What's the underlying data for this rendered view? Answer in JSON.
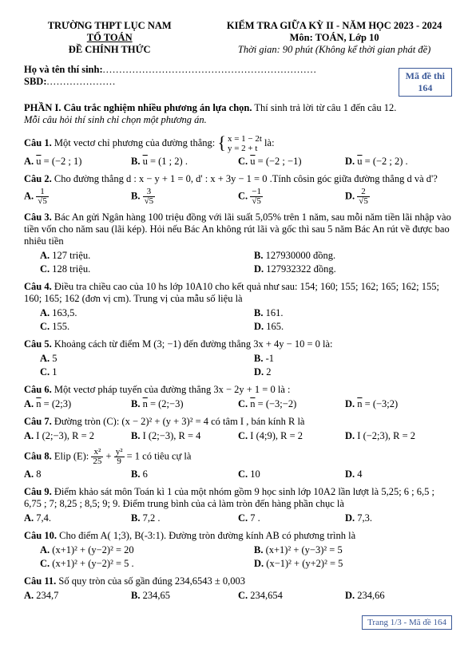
{
  "header": {
    "school": "TRƯỜNG THPT LỤC NAM",
    "dept": "TỔ TOÁN",
    "official": "ĐỀ CHÍNH THỨC",
    "exam_title": "KIỂM TRA GIỮA KỲ II - NĂM HỌC 2023 - 2024",
    "subject": "Môn: TOÁN, Lớp 10",
    "time": "Thời gian: 90 phút (Không kể thời gian phát đề)",
    "exam_code_label": "Mã đề thi",
    "exam_code": "164",
    "name_label": "Họ và tên thí sinh:",
    "sbd_label": "SBD:"
  },
  "section": {
    "title": "PHẦN I. Câu trắc nghiệm nhiều phương án lựa chọn.",
    "title_tail": " Thí sinh trả lời từ câu 1 đến câu 12.",
    "instruction": "Mỗi câu hỏi thí sinh chỉ chọn một phương án."
  },
  "q1": {
    "label": "Câu 1.",
    "text1": " Một vectơ chỉ phương của đường thẳng: ",
    "sys1": "x = 1 − 2t",
    "sys2": "y = 2 + t",
    "text2": " là:",
    "a": "u = (−2 ; 1)",
    "b": "u = (1 ; 2) .",
    "c": "u = (−2 ; −1)",
    "d": "u = (−2 ; 2) ."
  },
  "q2": {
    "label": "Câu 2.",
    "text": " Cho đường thẳng d : x − y + 1 = 0, d' : x + 3y − 1 = 0 .Tính côsin góc giữa đường thẳng d và d'?"
  },
  "q3": {
    "label": "Câu 3.",
    "text": " Bác An gửi Ngân hàng 100 triệu đồng với lãi suất 5,05% trên 1 năm, sau mỗi năm tiền lãi nhập vào tiền vốn cho năm sau (lãi kép). Hỏi nếu Bác An không rút lãi và gốc thì sau 5 năm Bác An rút về được bao nhiêu tiền",
    "a": "127 triệu.",
    "b": "127930000 đồng.",
    "c": "128 triệu.",
    "d": "127932322 đồng."
  },
  "q4": {
    "label": "Câu 4.",
    "text": " Điều tra chiều cao của 10 hs lớp 10A10 cho kết quả như sau: 154; 160; 155; 162; 165; 162; 155; 160; 165; 162 (đơn vị cm). Trung vị của mẫu số liệu là",
    "a": "163,5.",
    "b": "161.",
    "c": "155.",
    "d": "165."
  },
  "q5": {
    "label": "Câu 5.",
    "text": " Khoảng cách từ điểm M (3; −1) đến đường thẳng 3x + 4y − 10 = 0 là:",
    "a": "5",
    "b": "-1",
    "c": "1",
    "d": "2"
  },
  "q6": {
    "label": "Câu 6.",
    "text": " Một vectơ pháp tuyến của đường thẳng 3x − 2y + 1 = 0 là :",
    "a": "n = (2;3)",
    "b": "n = (2;−3)",
    "c": "n = (−3;−2)",
    "d": "n = (−3;2)"
  },
  "q7": {
    "label": "Câu 7.",
    "text": " Đường tròn (C): (x − 2)² + (y + 3)² = 4 có tâm I , bán kính R là",
    "a": "I (2;−3), R = 2",
    "b": "I (2;−3), R = 4",
    "c": "I (4;9), R = 2",
    "d": "I (−2;3), R = 2"
  },
  "q8": {
    "label": "Câu 8.",
    "text1": " Elip (E): ",
    "text2": " = 1 có tiêu cự là",
    "a": "8",
    "b": "6",
    "c": "10",
    "d": "4"
  },
  "q9": {
    "label": "Câu 9.",
    "text": " Điểm khảo sát môn Toán kì 1 của một nhóm gồm 9 học sinh lớp 10A2 lần lượt là 5,25;  6 ; 6,5 ; 6,75 ; 7; 8,25 ; 8,5; 9; 9. Điểm trung bình của cả làm tròn đến hàng phần chục là",
    "a": "7,4.",
    "b": "7,2 .",
    "c": "7 .",
    "d": "7,3."
  },
  "q10": {
    "label": "Câu 10.",
    "text": " Cho điểm A( 1;3), B(-3:1). Đường tròn đường kính AB có phương trình là",
    "a": "(x+1)² + (y−2)² = 20",
    "b": "(x+1)² + (y−3)² = 5",
    "c": "(x+1)² + (y−2)² = 5 .",
    "d": "(x−1)² + (y+2)² = 5"
  },
  "q11": {
    "label": "Câu 11.",
    "text": " Số quy tròn của số gần đúng 234,6543 ± 0,003",
    "a": "234,7",
    "b": "234,65",
    "c": "234,654",
    "d": "234,66"
  },
  "footer": {
    "text": "Trang 1/3 - Mã đề 164"
  }
}
